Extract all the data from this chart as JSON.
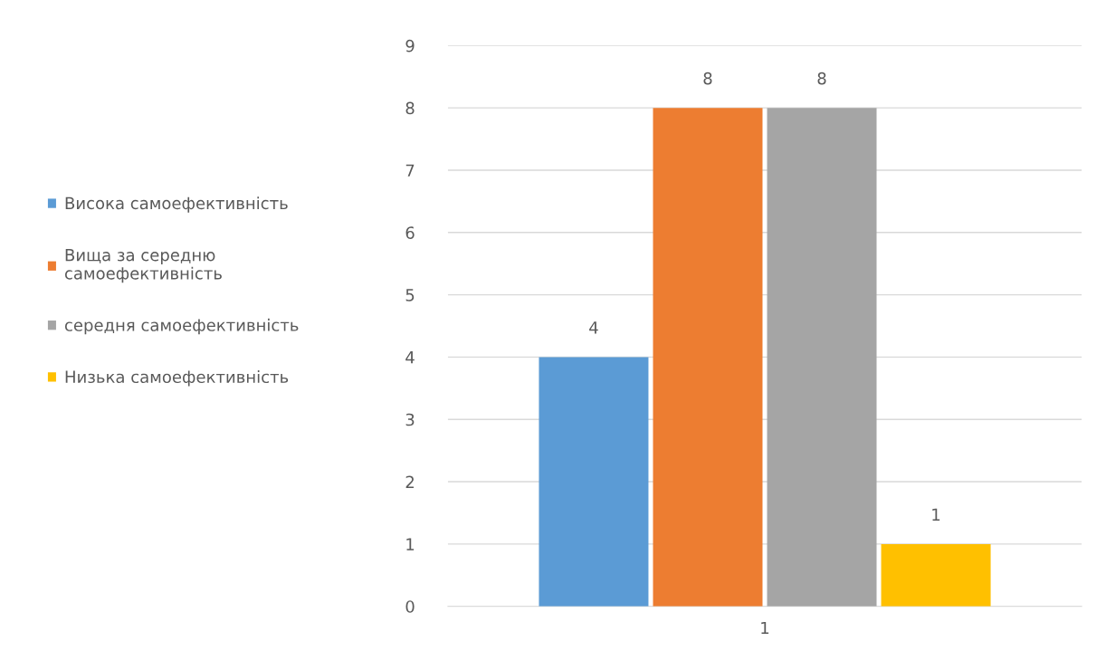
{
  "chart_data": {
    "type": "bar",
    "categories": [
      "1"
    ],
    "series": [
      {
        "name": "Висока самоефективність",
        "color": "#5b9bd5",
        "values": [
          4
        ]
      },
      {
        "name": "Вища за середню\nсамоефективність",
        "color": "#ed7d31",
        "values": [
          8
        ]
      },
      {
        "name": "середня самоефективність",
        "color": "#a5a5a5",
        "values": [
          8
        ]
      },
      {
        "name": "Низька самоефективність",
        "color": "#ffc000",
        "values": [
          1
        ]
      }
    ],
    "ylim": [
      0,
      9
    ],
    "yticks": [
      0,
      1,
      2,
      3,
      4,
      5,
      6,
      7,
      8,
      9
    ],
    "grid": "y",
    "legend": "left",
    "data_labels": true
  }
}
